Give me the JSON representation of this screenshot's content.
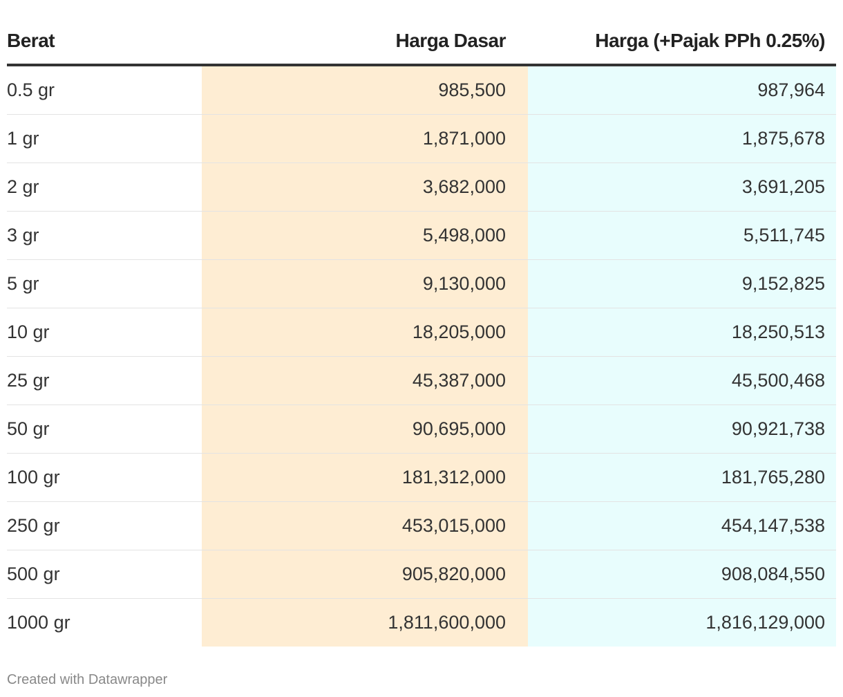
{
  "table": {
    "header": [
      "Berat",
      "Harga Dasar",
      "Harga (+Pajak PPh 0.25%)"
    ],
    "rows": [
      [
        "0.5 gr",
        "985,500",
        "987,964"
      ],
      [
        "1 gr",
        "1,871,000",
        "1,875,678"
      ],
      [
        "2 gr",
        "3,682,000",
        "3,691,205"
      ],
      [
        "3 gr",
        "5,498,000",
        "5,511,745"
      ],
      [
        "5 gr",
        "9,130,000",
        "9,152,825"
      ],
      [
        "10 gr",
        "18,205,000",
        "18,250,513"
      ],
      [
        "25 gr",
        "45,387,000",
        "45,500,468"
      ],
      [
        "50 gr",
        "90,695,000",
        "90,921,738"
      ],
      [
        "100 gr",
        "181,312,000",
        "181,765,280"
      ],
      [
        "250 gr",
        "453,015,000",
        "454,147,538"
      ],
      [
        "500 gr",
        "905,820,000",
        "908,084,550"
      ],
      [
        "1000 gr",
        "1,811,600,000",
        "1,816,129,000"
      ]
    ]
  },
  "footer": "Created with Datawrapper"
}
